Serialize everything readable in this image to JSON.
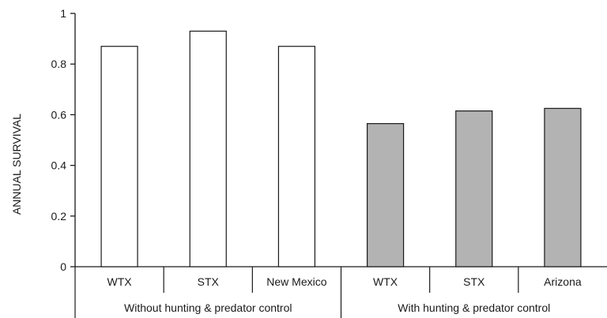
{
  "chart_data": {
    "type": "bar",
    "ylabel": "ANNUAL SURVIVAL",
    "ylim": [
      0,
      1
    ],
    "yticks": [
      0,
      0.2,
      0.4,
      0.6,
      0.8,
      1
    ],
    "ytick_labels": [
      "0",
      "0.2",
      "0.4",
      "0.6",
      "0.8",
      "1"
    ],
    "categories": [
      "WTX",
      "STX",
      "New Mexico",
      "WTX",
      "STX",
      "Arizona"
    ],
    "values": [
      0.87,
      0.93,
      0.87,
      0.565,
      0.615,
      0.625
    ],
    "groups": [
      {
        "label": "Without hunting & predator control",
        "span": [
          0,
          2
        ],
        "color": "#ffffff"
      },
      {
        "label": "With hunting & predator control",
        "span": [
          3,
          5
        ],
        "color": "#b3b3b3"
      }
    ],
    "grid": false,
    "legend": "none"
  }
}
